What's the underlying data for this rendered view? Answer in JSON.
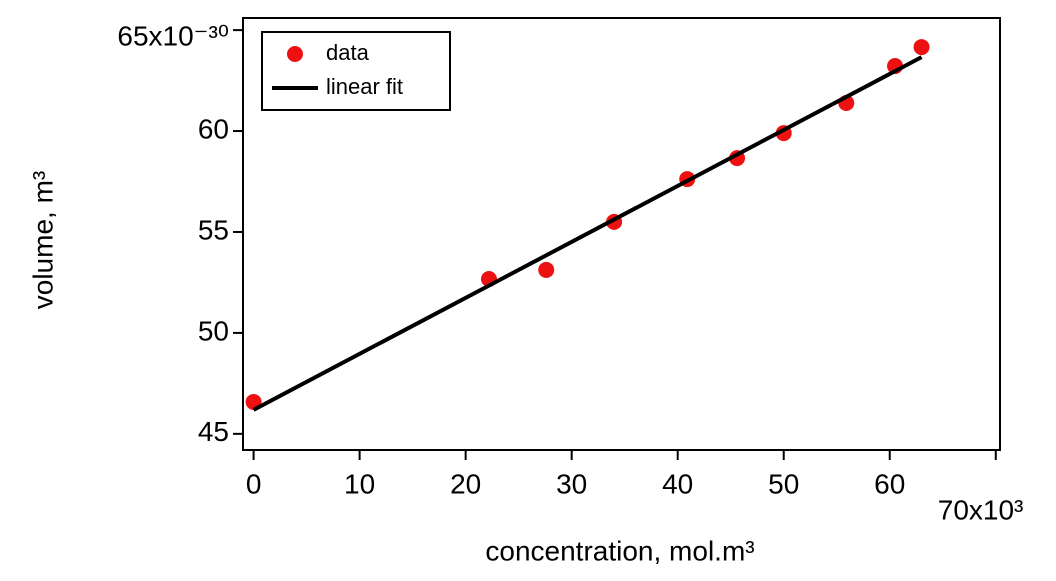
{
  "chart_data": {
    "type": "scatter",
    "xlabel": "concentration, mol.m³",
    "ylabel": "volume, m³",
    "xlim": [
      -1,
      70.4
    ],
    "ylim": [
      44.2,
      65.6
    ],
    "xticks": [
      0,
      10,
      20,
      30,
      40,
      50,
      60,
      {
        "value": 70,
        "label": "70x10³"
      }
    ],
    "yticks": [
      45,
      50,
      55,
      60,
      {
        "value": 65,
        "label": "65x10⁻³⁰"
      }
    ],
    "legend": "top-left",
    "series": [
      {
        "name": "data",
        "kind": "points",
        "color": "#ee1111",
        "x": [
          0,
          22.2,
          27.6,
          34.0,
          40.9,
          45.6,
          50.0,
          55.9,
          60.5,
          63.0
        ],
        "values": [
          46.58,
          52.67,
          53.12,
          55.5,
          57.62,
          58.66,
          59.9,
          61.39,
          63.22,
          64.16
        ]
      },
      {
        "name": "linear fit",
        "kind": "line",
        "color": "#000000",
        "x": [
          0,
          63
        ],
        "values": [
          46.19,
          63.66
        ]
      }
    ]
  }
}
